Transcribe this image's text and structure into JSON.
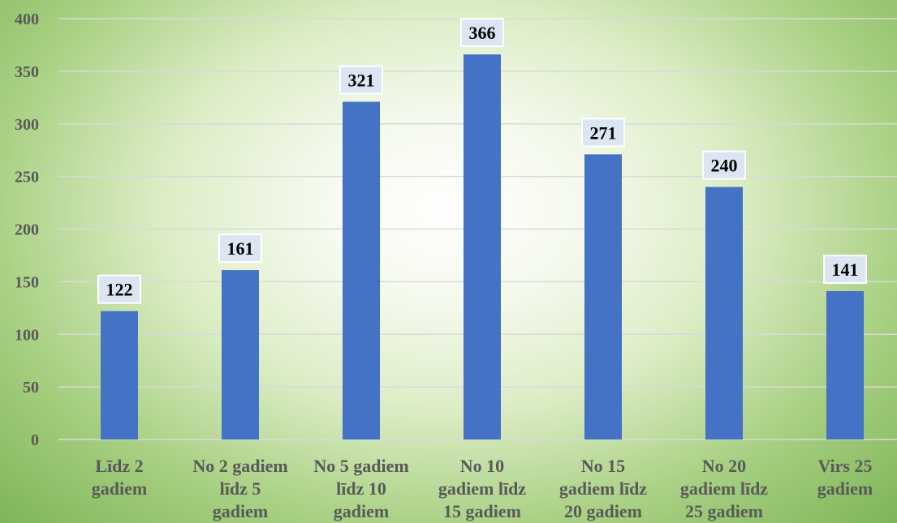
{
  "chart_data": {
    "type": "bar",
    "categories": [
      [
        "Līdz 2",
        "gadiem"
      ],
      [
        "No 2 gadiem",
        "līdz 5",
        "gadiem"
      ],
      [
        "No 5 gadiem",
        "līdz 10",
        "gadiem"
      ],
      [
        "No 10",
        "gadiem līdz",
        "15 gadiem"
      ],
      [
        "No 15",
        "gadiem līdz",
        "20 gadiem"
      ],
      [
        "No 20",
        "gadiem līdz",
        "25 gadiem"
      ],
      [
        "Virs 25",
        "gadiem"
      ]
    ],
    "values": [
      122,
      161,
      321,
      366,
      271,
      240,
      141
    ],
    "ylim": [
      0,
      400
    ],
    "yticks": [
      0,
      50,
      100,
      150,
      200,
      250,
      300,
      350,
      400
    ],
    "grid": true,
    "legend": "none",
    "bar_color": "#4472c4",
    "gridline_color": "#d9d9d9",
    "data_label_bg": "#dce6f2"
  }
}
